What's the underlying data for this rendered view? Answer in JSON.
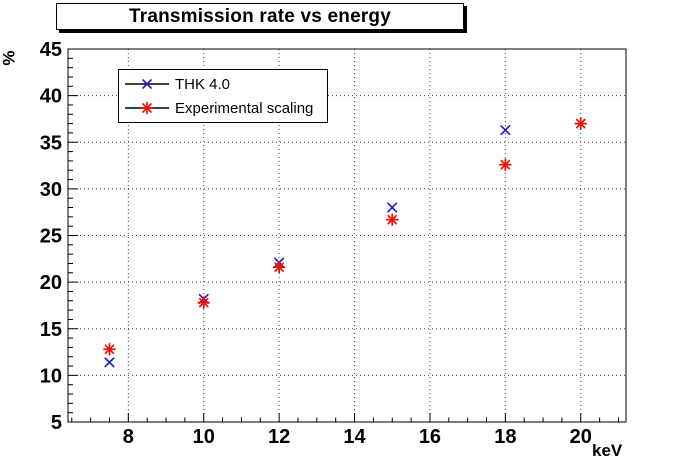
{
  "title": "Transmission rate vs energy",
  "chart_data": {
    "type": "scatter",
    "title": "Transmission rate vs energy",
    "xlabel": "keV",
    "ylabel": "%",
    "xlim": [
      6.4,
      21.2
    ],
    "ylim": [
      5,
      45
    ],
    "x_major_ticks": [
      8,
      10,
      12,
      14,
      16,
      18,
      20
    ],
    "x_minor_step": 0.5,
    "y_major_ticks": [
      5,
      10,
      15,
      20,
      25,
      30,
      35,
      40,
      45
    ],
    "y_minor_step": 1,
    "grid": "dotted lines at major ticks, both axes",
    "legend_position": "top-left",
    "frame_color": "#000000",
    "background_color": "#ffffff",
    "series": [
      {
        "name": "THK 4.0",
        "marker": "x",
        "color": "#2222cc",
        "points": [
          [
            7.5,
            11.4
          ],
          [
            10,
            18.2
          ],
          [
            12,
            22.1
          ],
          [
            15,
            28.0
          ],
          [
            18,
            36.3
          ]
        ]
      },
      {
        "name": "Experimental scaling",
        "marker": "*",
        "color": "#ee1100",
        "points": [
          [
            7.5,
            12.8
          ],
          [
            10,
            17.8
          ],
          [
            12,
            21.6
          ],
          [
            15,
            26.7
          ],
          [
            18,
            32.6
          ],
          [
            20,
            37.0
          ]
        ]
      }
    ]
  }
}
